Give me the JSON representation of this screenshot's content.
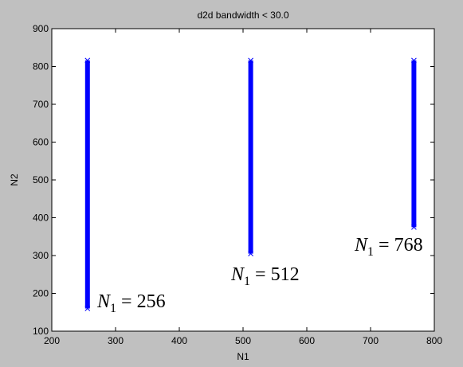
{
  "chart_data": {
    "type": "range",
    "title": "d2d bandwidth < 30.0",
    "x_label": "N1",
    "y_label": "N2",
    "x": [
      256,
      512,
      768
    ],
    "low": [
      160,
      305,
      375
    ],
    "high": [
      816,
      816,
      816
    ],
    "color": "#0000ff",
    "xlim": [
      200,
      800
    ],
    "xticks": [
      200,
      300,
      400,
      500,
      600,
      700,
      800
    ],
    "ylim": [
      100,
      900
    ],
    "yticks": [
      100,
      200,
      300,
      400,
      500,
      600,
      700,
      800,
      900
    ],
    "annotations": [
      {
        "symbol": "N",
        "subscript": "1",
        "relation": "=",
        "value": 256
      },
      {
        "symbol": "N",
        "subscript": "1",
        "relation": "=",
        "value": 512
      },
      {
        "symbol": "N",
        "subscript": "1",
        "relation": "=",
        "value": 768
      }
    ]
  }
}
